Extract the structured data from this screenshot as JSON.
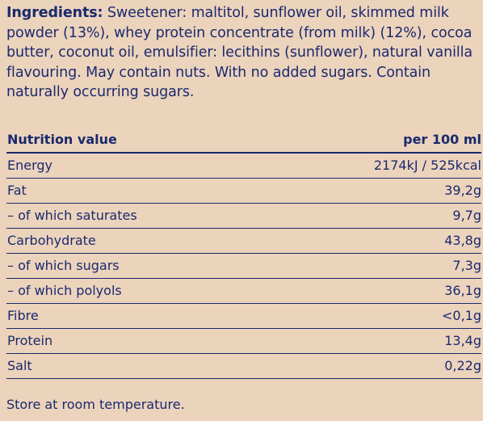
{
  "ingredients": {
    "label": "Ingredients:",
    "text": "Sweetener: maltitol, sunflower oil, skimmed milk powder (13%), whey protein concentrate (from milk) (12%), cocoa butter, coconut oil, emulsifier: lecithins (sunflower), natural vanilla flavouring. May contain nuts. With no added sugars. Contain naturally occurring sugars."
  },
  "nutrition": {
    "header": {
      "name": "Nutrition value",
      "value": "per 100 ml"
    },
    "rows": [
      {
        "name": "Energy",
        "value": "2174kJ / 525kcal"
      },
      {
        "name": "Fat",
        "value": "39,2g"
      },
      {
        "name": "– of which saturates",
        "value": "9,7g"
      },
      {
        "name": "Carbohydrate",
        "value": "43,8g"
      },
      {
        "name": "– of which sugars",
        "value": "7,3g"
      },
      {
        "name": "– of which polyols",
        "value": "36,1g"
      },
      {
        "name": "Fibre",
        "value": "<0,1g"
      },
      {
        "name": "Protein",
        "value": "13,4g"
      },
      {
        "name": "Salt",
        "value": "0,22g"
      }
    ]
  },
  "storage": "Store at room temperature."
}
